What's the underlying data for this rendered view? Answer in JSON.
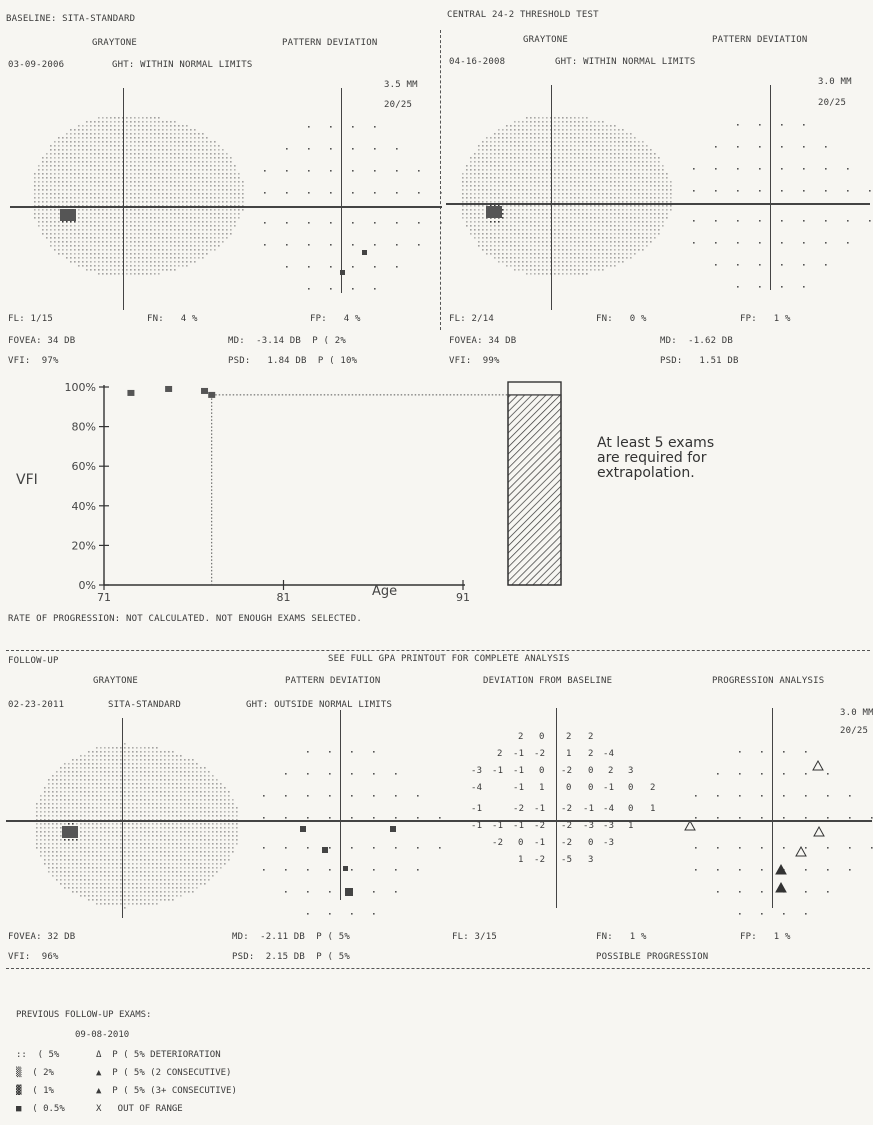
{
  "baseline": {
    "title": "BASELINE: SITA-STANDARD",
    "header": "CENTRAL 24-2 THRESHOLD TEST",
    "exam1": {
      "graytone": "GRAYTONE",
      "pattern": "PATTERN DEVIATION",
      "date": "03-09-2006",
      "ght": "GHT: WITHIN NORMAL LIMITS",
      "pupil": "3.5 MM",
      "va": "20/25",
      "fl": "FL: 1/15",
      "fn": "FN:   4 %",
      "fp": "FP:   4 %",
      "fovea": "FOVEA: 34 DB",
      "vfi": "VFI:  97%",
      "md": "MD:  -3.14 DB  P ( 2%",
      "psd": "PSD:   1.84 DB  P ( 10%"
    },
    "exam2": {
      "graytone": "GRAYTONE",
      "pattern": "PATTERN DEVIATION",
      "date": "04-16-2008",
      "ght": "GHT: WITHIN NORMAL LIMITS",
      "pupil": "3.0 MM",
      "va": "20/25",
      "fl": "FL: 2/14",
      "fn": "FN:   0 %",
      "fp": "FP:   1 %",
      "fovea": "FOVEA: 34 DB",
      "vfi": "VFI:  99%",
      "md": "MD:  -1.62 DB",
      "psd": "PSD:   1.51 DB"
    }
  },
  "chart_data": {
    "type": "scatter",
    "ylabel": "VFI",
    "xlabel": "Age",
    "y_ticks": [
      "100%",
      "80%",
      "60%",
      "40%",
      "20%",
      "0%"
    ],
    "x_ticks": [
      "71",
      "81",
      "91"
    ],
    "xlim": [
      71,
      91
    ],
    "ylim": [
      0,
      100
    ],
    "points": [
      {
        "x": 72.5,
        "y": 97
      },
      {
        "x": 74.6,
        "y": 99
      },
      {
        "x": 76.6,
        "y": 98
      },
      {
        "x": 77.0,
        "y": 96
      }
    ],
    "current_vfi_bar": 96,
    "note": "At least 5 exams\nare required for\nextrapolation."
  },
  "rate": "RATE OF PROGRESSION: NOT CALCULATED. NOT ENOUGH EXAMS SELECTED.",
  "followup": {
    "title": "FOLLOW-UP",
    "see_full": "SEE FULL GPA PRINTOUT FOR COMPLETE ANALYSIS",
    "graytone": "GRAYTONE",
    "pattern": "PATTERN DEVIATION",
    "deviation": "DEVIATION FROM BASELINE",
    "progression": "PROGRESSION ANALYSIS",
    "date": "02-23-2011",
    "strategy": "SITA-STANDARD",
    "ght": "GHT: OUTSIDE NORMAL LIMITS",
    "pupil": "3.0 MM",
    "va": "20/25",
    "fovea": "FOVEA: 32 DB",
    "vfi": "VFI:  96%",
    "md": "MD:  -2.11 DB  P ( 5%",
    "psd": "PSD:  2.15 DB  P ( 5%",
    "fl": "FL: 3/15",
    "fn": "FN:   1 %",
    "fp": "FP:   1 %",
    "status": "POSSIBLE PROGRESSION",
    "dev_rows": [
      [
        "",
        "",
        "2",
        "0",
        "|",
        "2",
        "2",
        "",
        "",
        ""
      ],
      [
        "",
        "2",
        "-1",
        "-2",
        "|",
        "1",
        "2",
        "-4",
        "",
        ""
      ],
      [
        "-3",
        "-1",
        "-1",
        "0",
        "|",
        "-2",
        "0",
        "2",
        "3",
        ""
      ],
      [
        "-4",
        "",
        "-1",
        "1",
        "|",
        "0",
        "0",
        "-1",
        "0",
        "2"
      ],
      [
        "-1",
        "",
        "-2",
        "-1",
        "|",
        "-2",
        "-1",
        "-4",
        "0",
        "1"
      ],
      [
        "-1",
        "-1",
        "-1",
        "-2",
        "|",
        "-2",
        "-3",
        "-3",
        "1",
        ""
      ],
      [
        "",
        "-2",
        "0",
        "-1",
        "|",
        "-2",
        "0",
        "-3",
        "",
        ""
      ],
      [
        "",
        "",
        "1",
        "-2",
        "|",
        "-5",
        "3",
        "",
        "",
        ""
      ]
    ]
  },
  "legend": {
    "title": "PREVIOUS FOLLOW-UP EXAMS:",
    "date": "09-08-2010",
    "items": [
      [
        "::  ( 5%",
        "Δ  P ( 5% DETERIORATION"
      ],
      [
        "▒  ( 2%",
        "▲  P ( 5% (2 CONSECUTIVE)"
      ],
      [
        "▓  ( 1%",
        "▲  P ( 5% (3+ CONSECUTIVE)"
      ],
      [
        "■  ( 0.5%",
        "X   OUT OF RANGE"
      ]
    ]
  }
}
